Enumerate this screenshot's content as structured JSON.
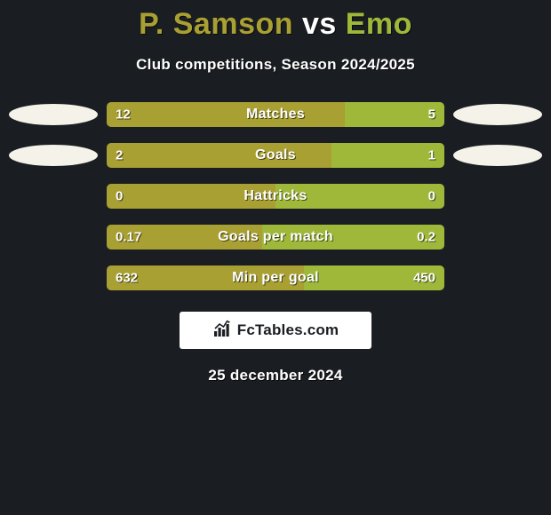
{
  "background_color": "#1a1d21",
  "title": {
    "player1": "P. Samson",
    "vs": "vs",
    "player2": "Emo",
    "player1_color": "#a8a032",
    "vs_color": "#ffffff",
    "player2_color": "#9fb839",
    "fontsize": 34
  },
  "subtitle": "Club competitions, Season 2024/2025",
  "marker_colors": {
    "left": "#f4f2e9",
    "right": "#f4f2e9"
  },
  "bar_colors": {
    "left": "#a8a032",
    "right": "#9fb839"
  },
  "track_color": "#2f3238",
  "rows": [
    {
      "label": "Matches",
      "left_text": "12",
      "right_text": "5",
      "left_pct": 70.6,
      "show_markers": true
    },
    {
      "label": "Goals",
      "left_text": "2",
      "right_text": "1",
      "left_pct": 66.7,
      "show_markers": true
    },
    {
      "label": "Hattricks",
      "left_text": "0",
      "right_text": "0",
      "left_pct": 50.0,
      "show_markers": false
    },
    {
      "label": "Goals per match",
      "left_text": "0.17",
      "right_text": "0.2",
      "left_pct": 46.0,
      "show_markers": false
    },
    {
      "label": "Min per goal",
      "left_text": "632",
      "right_text": "450",
      "left_pct": 58.4,
      "show_markers": false
    }
  ],
  "brand": "FcTables.com",
  "date": "25 december 2024"
}
